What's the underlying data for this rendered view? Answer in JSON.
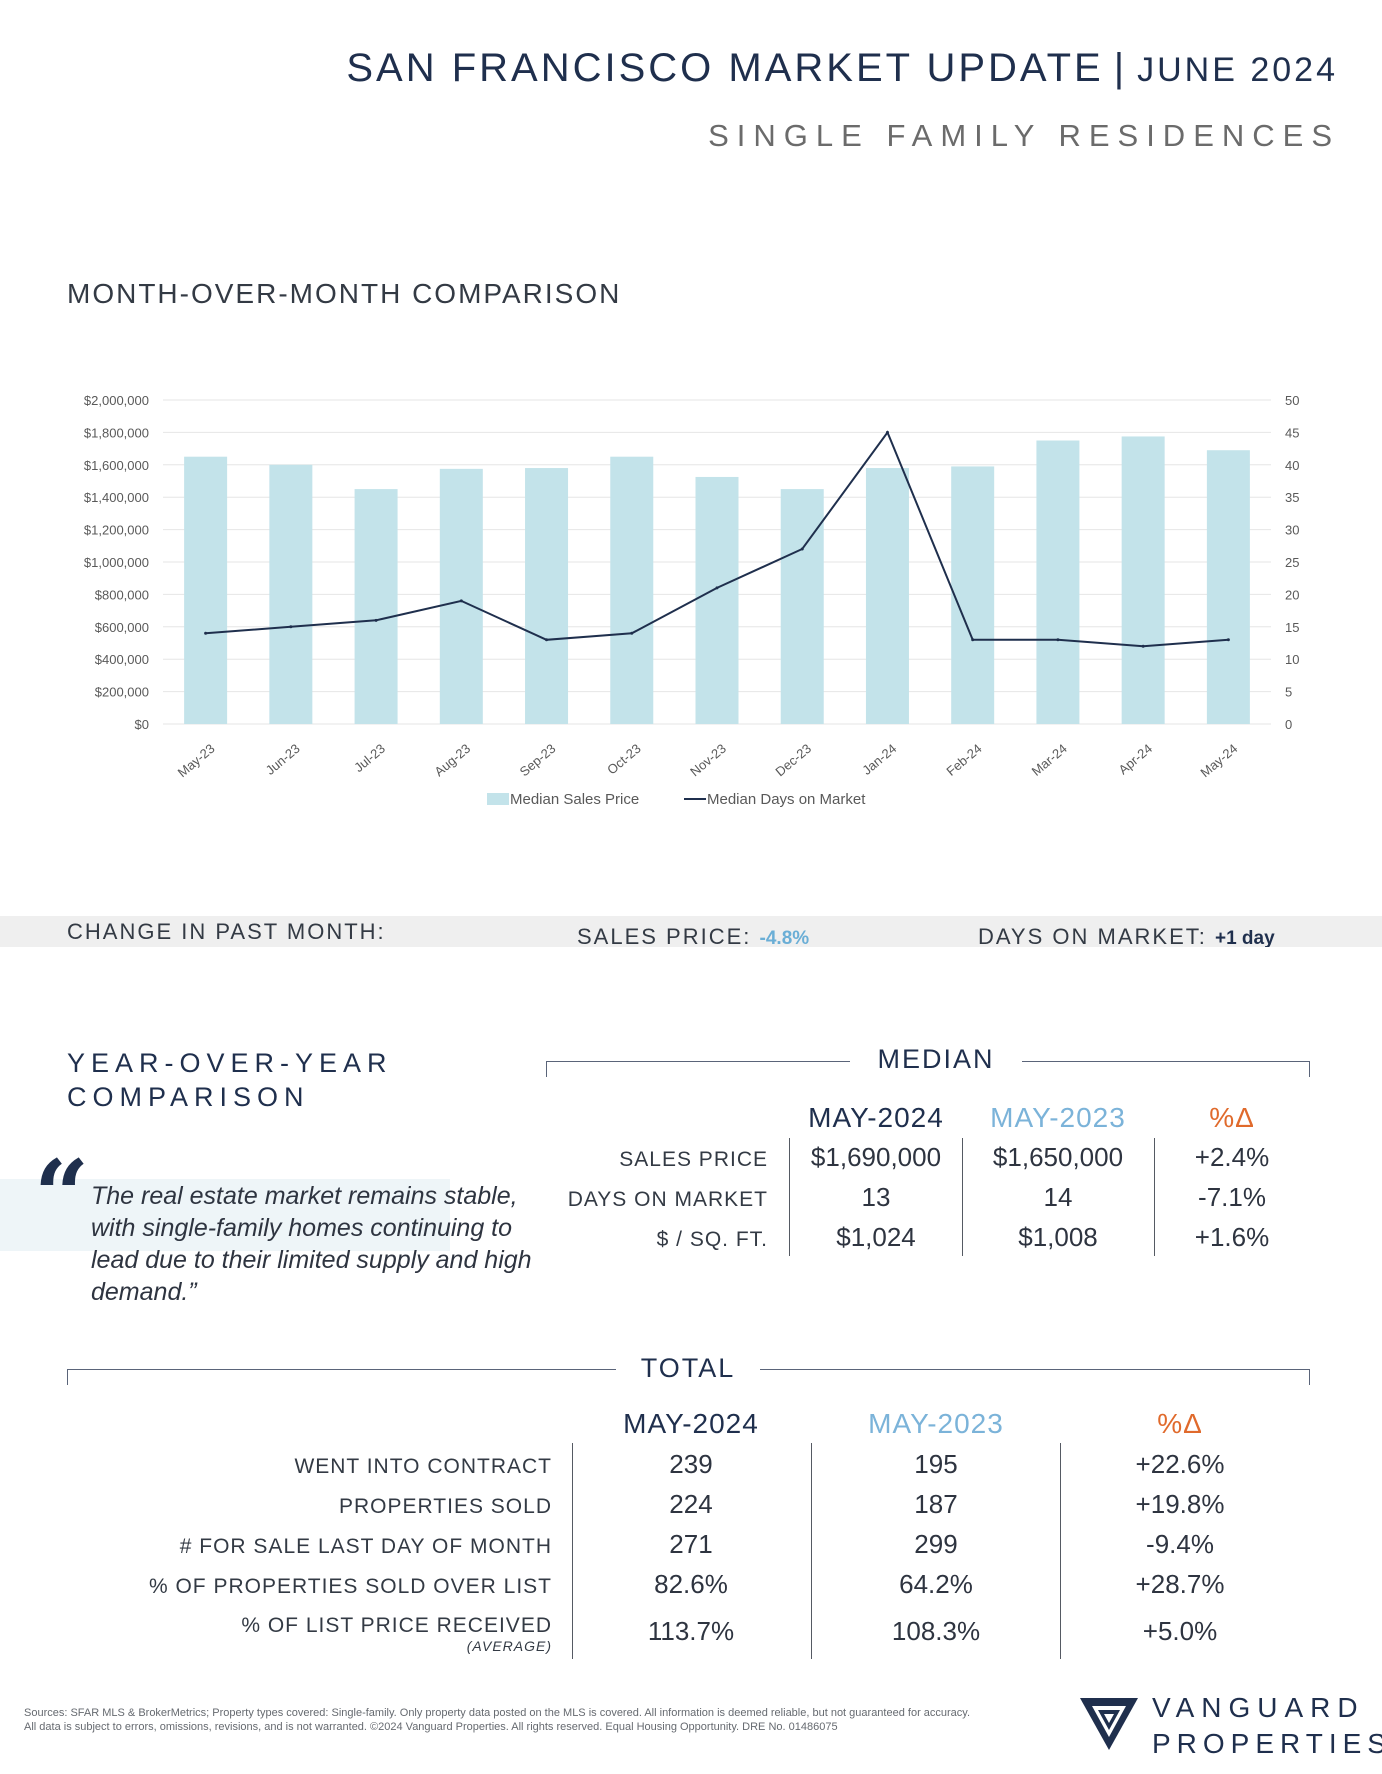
{
  "header": {
    "title": "SAN FRANCISCO MARKET UPDATE",
    "separator": "|",
    "date": "JUNE 2024",
    "subtitle": "SINGLE FAMILY RESIDENCES"
  },
  "mom": {
    "heading": "MONTH-OVER-MONTH COMPARISON"
  },
  "chart_data": {
    "type": "bar",
    "title": "",
    "categories": [
      "May-23",
      "Jun-23",
      "Jul-23",
      "Aug-23",
      "Sep-23",
      "Oct-23",
      "Nov-23",
      "Dec-23",
      "Jan-24",
      "Feb-24",
      "Mar-24",
      "Apr-24",
      "May-24"
    ],
    "series": [
      {
        "name": "Median Sales Price",
        "type": "bar",
        "axis": "left",
        "values": [
          1650000,
          1600000,
          1450000,
          1575000,
          1580000,
          1650000,
          1525000,
          1450000,
          1580000,
          1590000,
          1750000,
          1775000,
          1690000
        ]
      },
      {
        "name": "Median Days on Market",
        "type": "line",
        "axis": "right",
        "values": [
          14,
          15,
          16,
          19,
          13,
          14,
          21,
          27,
          45,
          13,
          13,
          12,
          13
        ]
      }
    ],
    "left_axis": {
      "min": 0,
      "max": 2000000,
      "step": 200000,
      "tick_labels": [
        "$0",
        "$200,000",
        "$400,000",
        "$600,000",
        "$800,000",
        "$1,000,000",
        "$1,200,000",
        "$1,400,000",
        "$1,600,000",
        "$1,800,000",
        "$2,000,000"
      ]
    },
    "right_axis": {
      "min": 0,
      "max": 50,
      "step": 5,
      "tick_labels": [
        "0",
        "5",
        "10",
        "15",
        "20",
        "25",
        "30",
        "35",
        "40",
        "45",
        "50"
      ]
    },
    "grid": true,
    "legend_position": "bottom-center",
    "colors": {
      "bar": "#c3e3ea",
      "line": "#1f2f4d",
      "grid": "#e6e6e6",
      "tick_text": "#595959"
    }
  },
  "change": {
    "label": "CHANGE IN PAST MONTH:",
    "sales_price_label": "SALES PRICE:",
    "sales_price_value": "-4.8%",
    "dom_label": "DAYS ON MARKET:",
    "dom_value": "+1 day"
  },
  "yoy": {
    "heading_line1": "YEAR-OVER-YEAR",
    "heading_line2": "COMPARISON",
    "quote_mark": "“",
    "quote": "The real estate market remains stable, with single-family homes continuing to lead due to their limited supply and high demand.”"
  },
  "median": {
    "label": "MEDIAN",
    "headers": [
      "MAY-2024",
      "MAY-2023",
      "%Δ"
    ],
    "rows": [
      {
        "label": "SALES PRICE",
        "cur": "$1,690,000",
        "prev": "$1,650,000",
        "pct": "+2.4%"
      },
      {
        "label": "DAYS ON MARKET",
        "cur": "13",
        "prev": "14",
        "pct": "-7.1%"
      },
      {
        "label": "$ / SQ. FT.",
        "cur": "$1,024",
        "prev": "$1,008",
        "pct": "+1.6%"
      }
    ]
  },
  "total": {
    "label": "TOTAL",
    "headers": [
      "MAY-2024",
      "MAY-2023",
      "%Δ"
    ],
    "rows": [
      {
        "label": "WENT INTO CONTRACT",
        "cur": "239",
        "prev": "195",
        "pct": "+22.6%"
      },
      {
        "label": "PROPERTIES SOLD",
        "cur": "224",
        "prev": "187",
        "pct": "+19.8%"
      },
      {
        "label": "# FOR SALE LAST DAY OF MONTH",
        "cur": "271",
        "prev": "299",
        "pct": "-9.4%"
      },
      {
        "label": "% OF PROPERTIES SOLD OVER LIST",
        "cur": "82.6%",
        "prev": "64.2%",
        "pct": "+28.7%"
      },
      {
        "label": "% OF LIST PRICE RECEIVED",
        "sublabel": "(AVERAGE)",
        "cur": "113.7%",
        "prev": "108.3%",
        "pct": "+5.0%"
      }
    ]
  },
  "footer": {
    "sources": "Sources: SFAR MLS & BrokerMetrics; Property types covered: Single-family. Only property data posted on the MLS is covered. All information is deemed reliable, but not guaranteed for accuracy. All data is subject to errors, omissions, revisions, and is not warranted. ©2024 Vanguard Properties. All rights reserved. Equal Housing Opportunity. DRE No. 01486075",
    "logo_line1": "VANGUARD",
    "logo_line2": "PROPERTIES"
  }
}
